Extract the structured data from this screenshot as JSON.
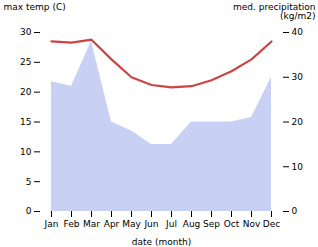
{
  "chart_data": {
    "type": "line",
    "categories": [
      "Jan",
      "Feb",
      "Mar",
      "Apr",
      "May",
      "Jun",
      "Jul",
      "Aug",
      "Sep",
      "Oct",
      "Nov",
      "Dec"
    ],
    "series": [
      {
        "type": "area",
        "color": "#c8d0f4",
        "axis": "y2",
        "values": [
          29.0,
          28.0,
          38.0,
          20.0,
          18.0,
          15.0,
          15.0,
          20.0,
          20.0,
          20.0,
          21.0,
          30.0
        ]
      },
      {
        "type": "line",
        "color": "#cc4444",
        "values": [
          28.5,
          28.3,
          28.8,
          25.5,
          22.5,
          21.2,
          20.8,
          21.0,
          22.0,
          23.5,
          25.5,
          28.5
        ]
      }
    ],
    "xlabel": "date (month)",
    "ylabel": "max temp (C)",
    "y2label": "med. precipitation\n(kg/m2)",
    "ylim": [
      0,
      30
    ],
    "yticks": [
      0,
      5,
      10,
      15,
      20,
      25,
      30
    ],
    "y2lim": [
      0,
      40
    ],
    "y2ticks": [
      0,
      10,
      20,
      30,
      40
    ]
  }
}
